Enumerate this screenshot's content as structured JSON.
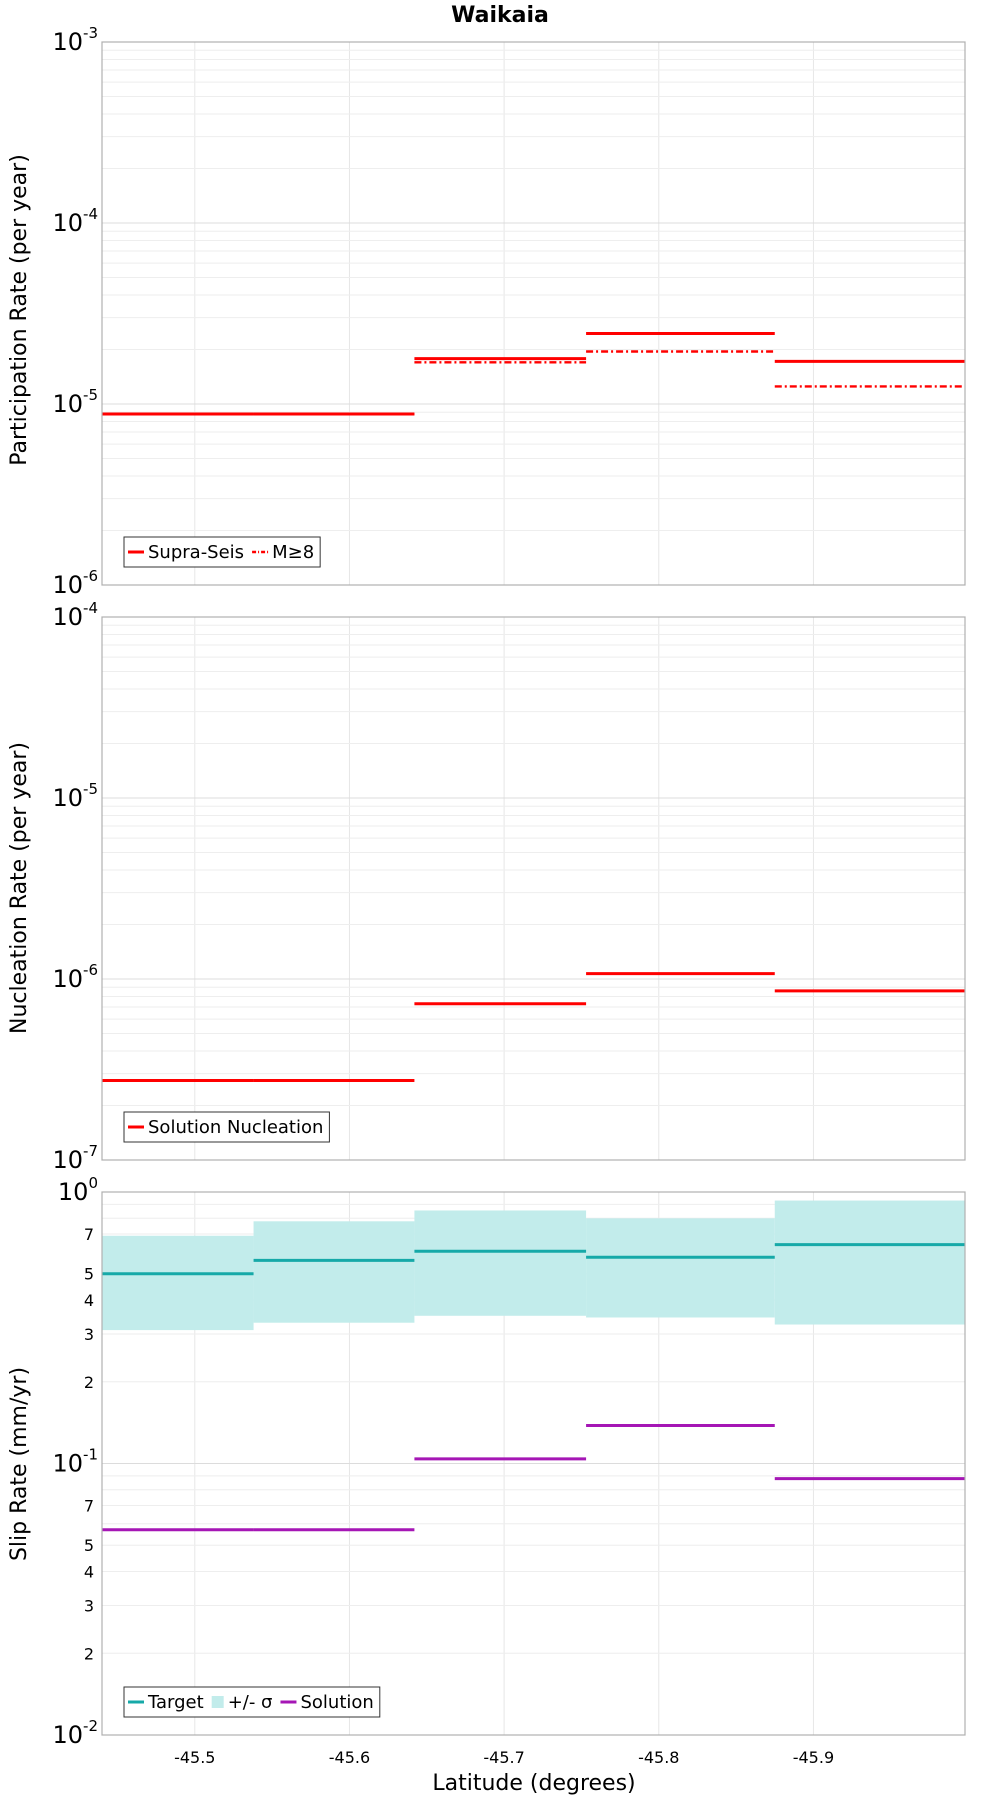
{
  "chart_data": [
    {
      "type": "line",
      "title": "Waikaia",
      "xlabel": "",
      "ylabel": "Participation Rate (per year)",
      "xlim": [
        -45.44,
        -45.998
      ],
      "x_ticks": [
        -45.5,
        -45.6,
        -45.7,
        -45.8,
        -45.9
      ],
      "ylim": [
        1e-06,
        0.001
      ],
      "yscale": "log",
      "grid": true,
      "legend_position": "bottom-left",
      "series": [
        {
          "name": "Supra-Seis",
          "color": "#ff0000",
          "style": "solid",
          "segments": [
            {
              "x0": -45.44,
              "x1": -45.538,
              "y": 8.8e-06
            },
            {
              "x0": -45.538,
              "x1": -45.642,
              "y": 8.8e-06
            },
            {
              "x0": -45.642,
              "x1": -45.753,
              "y": 1.78e-05
            },
            {
              "x0": -45.753,
              "x1": -45.875,
              "y": 2.45e-05
            },
            {
              "x0": -45.875,
              "x1": -45.998,
              "y": 1.72e-05
            }
          ]
        },
        {
          "name": "M≥8",
          "color": "#ff0000",
          "style": "dash-dot",
          "segments": [
            {
              "x0": -45.44,
              "x1": -45.538,
              "y": 8.8e-06
            },
            {
              "x0": -45.538,
              "x1": -45.642,
              "y": 8.8e-06
            },
            {
              "x0": -45.642,
              "x1": -45.753,
              "y": 1.7e-05
            },
            {
              "x0": -45.753,
              "x1": -45.875,
              "y": 1.95e-05
            },
            {
              "x0": -45.875,
              "x1": -45.998,
              "y": 1.25e-05
            }
          ]
        }
      ]
    },
    {
      "type": "line",
      "title": "",
      "xlabel": "",
      "ylabel": "Nucleation Rate (per year)",
      "xlim": [
        -45.44,
        -45.998
      ],
      "x_ticks": [
        -45.5,
        -45.6,
        -45.7,
        -45.8,
        -45.9
      ],
      "ylim": [
        1e-07,
        0.0001
      ],
      "yscale": "log",
      "grid": true,
      "legend_position": "bottom-left",
      "series": [
        {
          "name": "Solution Nucleation",
          "color": "#ff0000",
          "style": "solid",
          "segments": [
            {
              "x0": -45.44,
              "x1": -45.538,
              "y": 2.75e-07
            },
            {
              "x0": -45.538,
              "x1": -45.642,
              "y": 2.75e-07
            },
            {
              "x0": -45.642,
              "x1": -45.753,
              "y": 7.3e-07
            },
            {
              "x0": -45.753,
              "x1": -45.875,
              "y": 1.07e-06
            },
            {
              "x0": -45.875,
              "x1": -45.998,
              "y": 8.6e-07
            }
          ]
        }
      ]
    },
    {
      "type": "line",
      "title": "",
      "xlabel": "Latitude (degrees)",
      "ylabel": "Slip Rate (mm/yr)",
      "xlim": [
        -45.44,
        -45.998
      ],
      "x_ticks": [
        -45.5,
        -45.6,
        -45.7,
        -45.8,
        -45.9
      ],
      "x_tick_labels": [
        "-45.5",
        "-45.6",
        "-45.7",
        "-45.8",
        "-45.9"
      ],
      "ylim": [
        0.01,
        1
      ],
      "yscale": "log",
      "y_minor_labels": [
        2,
        3,
        4,
        5,
        7
      ],
      "grid": true,
      "legend_position": "bottom-left",
      "band": {
        "name": "+/- σ",
        "color": "#c2eceb",
        "segments": [
          {
            "x0": -45.44,
            "x1": -45.538,
            "lo": 0.31,
            "hi": 0.69
          },
          {
            "x0": -45.538,
            "x1": -45.642,
            "lo": 0.33,
            "hi": 0.78
          },
          {
            "x0": -45.642,
            "x1": -45.753,
            "lo": 0.35,
            "hi": 0.855
          },
          {
            "x0": -45.753,
            "x1": -45.875,
            "lo": 0.345,
            "hi": 0.8
          },
          {
            "x0": -45.875,
            "x1": -45.998,
            "lo": 0.325,
            "hi": 0.93
          }
        ]
      },
      "series": [
        {
          "name": "Target",
          "color": "#16a9a8",
          "style": "solid",
          "segments": [
            {
              "x0": -45.44,
              "x1": -45.538,
              "y": 0.5
            },
            {
              "x0": -45.538,
              "x1": -45.642,
              "y": 0.56
            },
            {
              "x0": -45.642,
              "x1": -45.753,
              "y": 0.605
            },
            {
              "x0": -45.753,
              "x1": -45.875,
              "y": 0.575
            },
            {
              "x0": -45.875,
              "x1": -45.998,
              "y": 0.64
            }
          ]
        },
        {
          "name": "Solution",
          "color": "#a516b5",
          "style": "solid",
          "segments": [
            {
              "x0": -45.44,
              "x1": -45.538,
              "y": 0.057
            },
            {
              "x0": -45.538,
              "x1": -45.642,
              "y": 0.057
            },
            {
              "x0": -45.642,
              "x1": -45.753,
              "y": 0.104
            },
            {
              "x0": -45.753,
              "x1": -45.875,
              "y": 0.138
            },
            {
              "x0": -45.875,
              "x1": -45.998,
              "y": 0.088
            }
          ]
        }
      ],
      "legend_entries": [
        {
          "name": "Target",
          "color": "#16a9a8",
          "kind": "line"
        },
        {
          "name": "+/- σ",
          "color": "#c2eceb",
          "kind": "band"
        },
        {
          "name": "Solution",
          "color": "#a516b5",
          "kind": "line"
        }
      ]
    }
  ]
}
